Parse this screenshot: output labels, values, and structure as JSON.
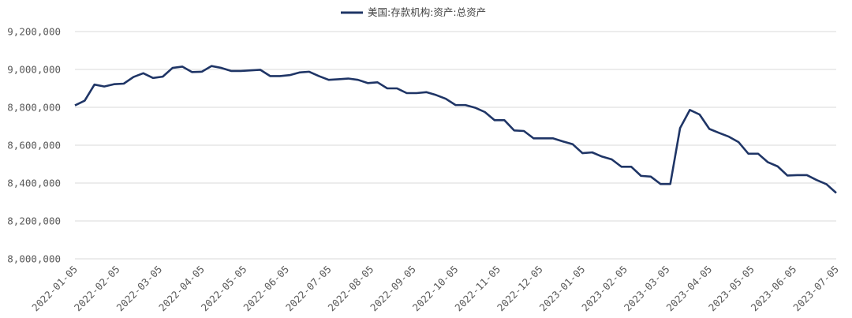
{
  "chart_data": {
    "type": "line",
    "title": "",
    "xlabel": "",
    "ylabel": "",
    "ylim": [
      8000000,
      9200000
    ],
    "y_ticks": [
      8000000,
      8200000,
      8400000,
      8600000,
      8800000,
      9000000,
      9200000
    ],
    "y_tick_labels": [
      "8,000,000",
      "8,200,000",
      "8,400,000",
      "8,600,000",
      "8,800,000",
      "9,000,000",
      "9,200,000"
    ],
    "x_tick_labels": [
      "2022-01-05",
      "2022-02-05",
      "2022-03-05",
      "2022-04-05",
      "2022-05-05",
      "2022-06-05",
      "2022-07-05",
      "2022-08-05",
      "2022-09-05",
      "2022-10-05",
      "2022-11-05",
      "2022-12-05",
      "2023-01-05",
      "2023-02-05",
      "2023-03-05",
      "2023-04-05",
      "2023-05-05",
      "2023-06-05",
      "2023-07-05"
    ],
    "grid": "horizontal",
    "legend": "top-center",
    "colors": {
      "series": "#1f3566",
      "grid": "#d9d9d9"
    },
    "series": [
      {
        "name": "美国:存款机构:资产:总资产",
        "x_range": [
          "2022-01-05",
          "2023-07-05"
        ],
        "values": [
          8810000,
          8835000,
          8920000,
          8910000,
          8922000,
          8925000,
          8960000,
          8980000,
          8955000,
          8962000,
          9008000,
          9015000,
          8986000,
          8988000,
          9018000,
          9008000,
          8992000,
          8992000,
          8995000,
          8998000,
          8965000,
          8965000,
          8970000,
          8984000,
          8988000,
          8965000,
          8945000,
          8948000,
          8952000,
          8945000,
          8928000,
          8932000,
          8900000,
          8900000,
          8875000,
          8875000,
          8880000,
          8865000,
          8845000,
          8812000,
          8812000,
          8798000,
          8775000,
          8732000,
          8732000,
          8678000,
          8675000,
          8636000,
          8636000,
          8636000,
          8620000,
          8605000,
          8558000,
          8562000,
          8540000,
          8525000,
          8486000,
          8486000,
          8438000,
          8434000,
          8395000,
          8395000,
          8690000,
          8786000,
          8762000,
          8686000,
          8665000,
          8645000,
          8616000,
          8555000,
          8555000,
          8510000,
          8488000,
          8440000,
          8442000,
          8442000,
          8416000,
          8394000,
          8348000
        ]
      }
    ]
  }
}
